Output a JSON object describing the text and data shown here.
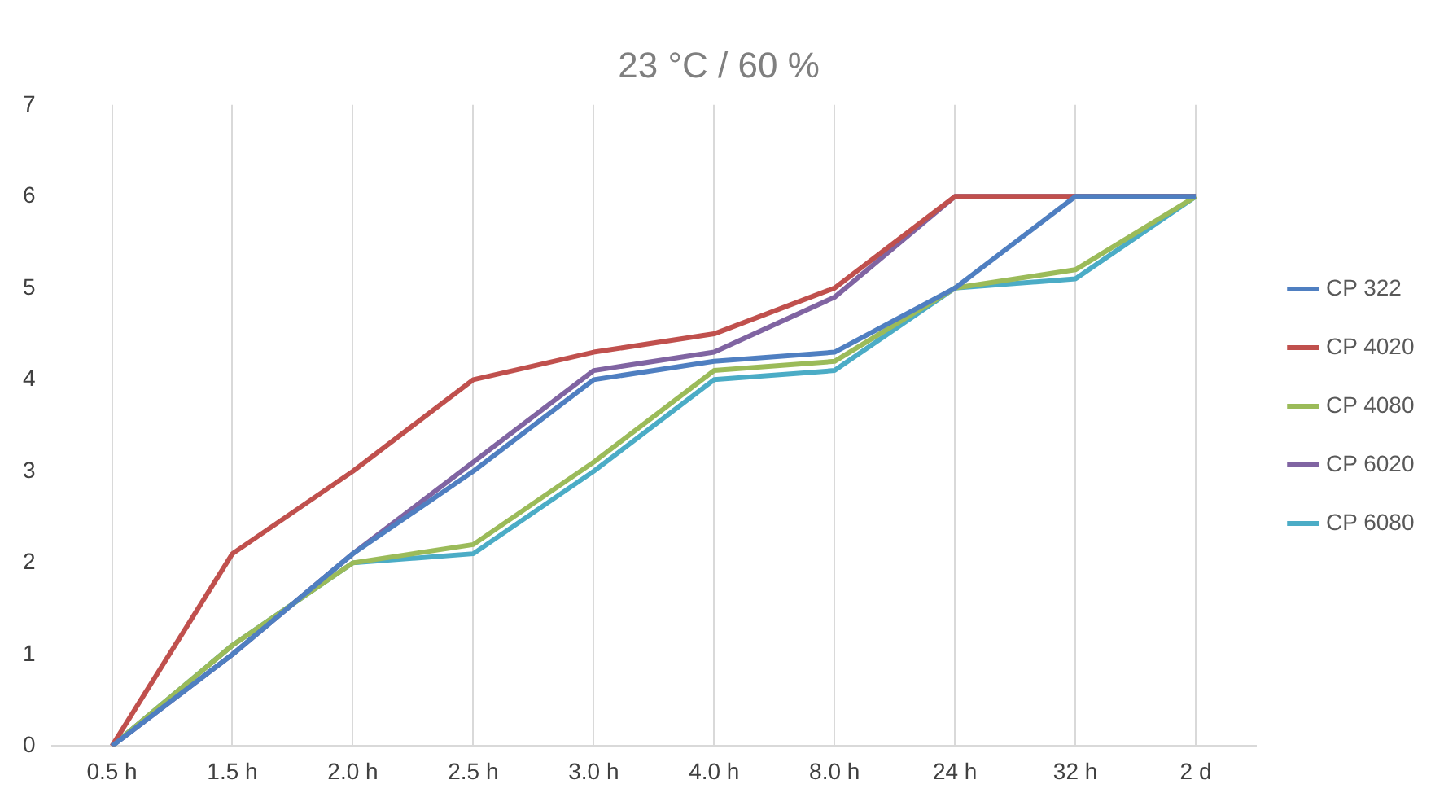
{
  "chart_data": {
    "type": "line",
    "title": "23 °C / 60 %",
    "categories": [
      "0.5 h",
      "1.5 h",
      "2.0 h",
      "2.5 h",
      "3.0 h",
      "4.0 h",
      "8.0 h",
      "24 h",
      "32 h",
      "2 d"
    ],
    "series": [
      {
        "name": "CP 322",
        "color": "#4f7fc1",
        "values": [
          0,
          1,
          2.1,
          3,
          4,
          4.2,
          4.3,
          5,
          6,
          6
        ]
      },
      {
        "name": "CP 4020",
        "color": "#c0504d",
        "values": [
          0,
          2.1,
          3,
          4,
          4.3,
          4.5,
          5,
          6,
          6,
          6
        ]
      },
      {
        "name": "CP 4080",
        "color": "#9bbb59",
        "values": [
          0,
          1.1,
          2,
          2.2,
          3.1,
          4.1,
          4.2,
          5,
          5.2,
          6
        ]
      },
      {
        "name": "CP 6020",
        "color": "#8064a2",
        "values": [
          0,
          1,
          2.1,
          3.1,
          4.1,
          4.3,
          4.9,
          6,
          6,
          6
        ]
      },
      {
        "name": "CP 6080",
        "color": "#4bacc6",
        "values": [
          0,
          1.1,
          2,
          2.1,
          3,
          4,
          4.1,
          5,
          5.1,
          6
        ]
      }
    ],
    "ylim": [
      0,
      7
    ],
    "yticks": [
      0,
      1,
      2,
      3,
      4,
      5,
      6,
      7
    ],
    "grid": "x",
    "legend": "right",
    "marker": "none",
    "line_style": "solid"
  }
}
